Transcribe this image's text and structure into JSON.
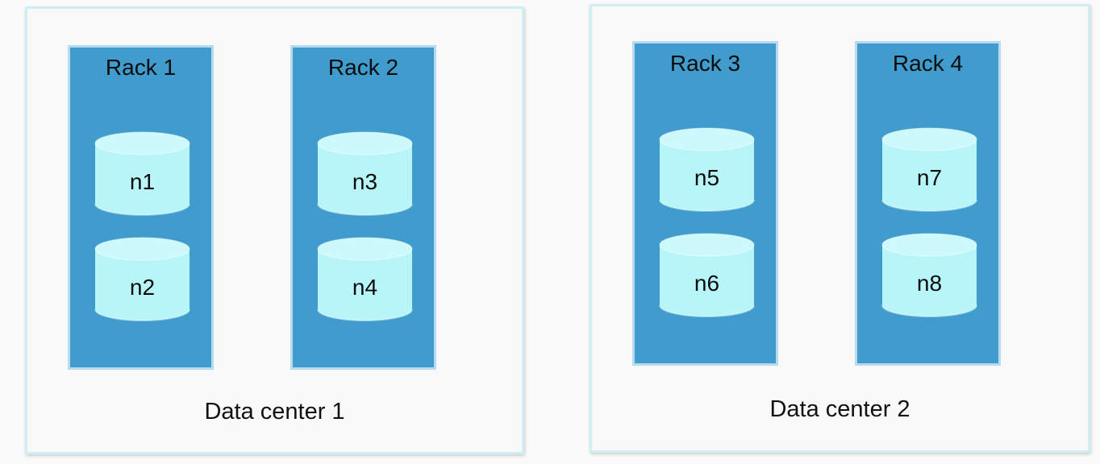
{
  "colors": {
    "background": "#fafafa",
    "data_center_border": "#cdeef2",
    "rack_fill": "#3f9ccc",
    "rack_border": "#b6dbee",
    "node_fill": "#b8f5f8",
    "node_top": "#ccf9fb"
  },
  "data_centers": [
    {
      "label": "Data center 1",
      "racks": [
        {
          "label": "Rack 1",
          "nodes": [
            "n1",
            "n2"
          ]
        },
        {
          "label": "Rack 2",
          "nodes": [
            "n3",
            "n4"
          ]
        }
      ]
    },
    {
      "label": "Data center 2",
      "racks": [
        {
          "label": "Rack 3",
          "nodes": [
            "n5",
            "n6"
          ]
        },
        {
          "label": "Rack 4",
          "nodes": [
            "n7",
            "n8"
          ]
        }
      ]
    }
  ]
}
